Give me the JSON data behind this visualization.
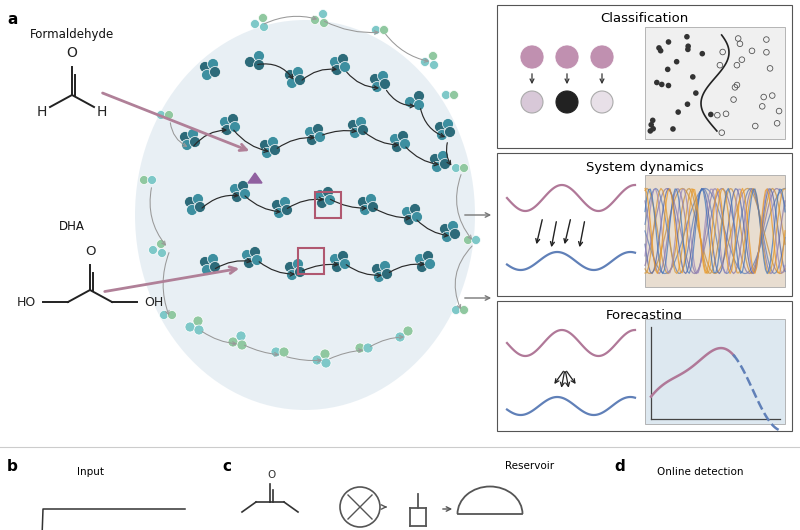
{
  "bg_color": "#ffffff",
  "panel_a": "a",
  "panel_b": "b",
  "panel_c": "c",
  "panel_d": "d",
  "formaldehyde_label": "Formaldehyde",
  "dha_label": "DHA",
  "classification_label": "Classification",
  "system_dynamics_label": "System dynamics",
  "forecasting_label": "Forecasting",
  "reservoir_label": "Reservoir",
  "input_label": "Input",
  "online_label": "Online detection",
  "node_dark": "#2d6b7a",
  "node_mid": "#3d8fa0",
  "node_light": "#7ec8c8",
  "node_green": "#90c8a0",
  "node_pale": "#b0d8d0",
  "arrow_dark": "#2a2a2a",
  "arrow_gray": "#909090",
  "arrow_pink": "#b08098",
  "box_pink": "#b05870",
  "circle_pink_fill": "#c090b0",
  "circle_light_fill": "#e8d8e8",
  "circle_dark_fill": "#333333",
  "wave_pink": "#b07898",
  "wave_blue": "#6080b8",
  "wave_orange": "#c89040",
  "wave_purple": "#8878a8",
  "tangle_bg": "#e8ddd0",
  "forecast_bg": "#dde8f0",
  "scatter_bg": "#f0f0f0",
  "panel_border": "#555555",
  "reservoir_bg": "#cddde8"
}
